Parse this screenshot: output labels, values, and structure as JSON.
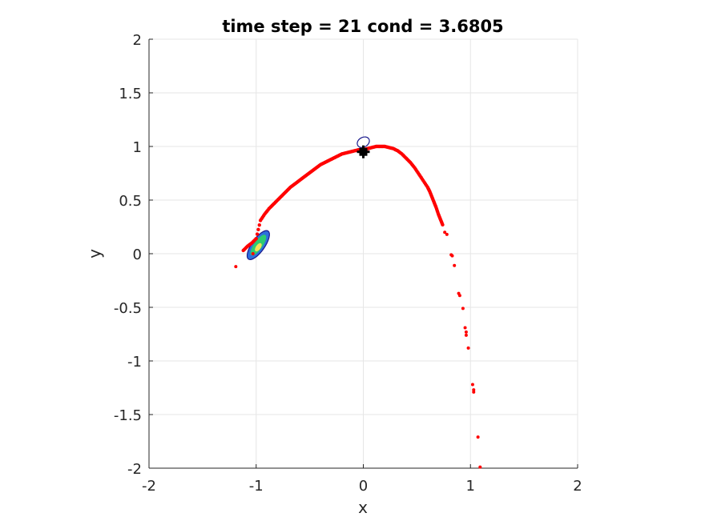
{
  "chart_data": {
    "type": "scatter",
    "title": "time step = 21 cond = 3.6805",
    "xlabel": "x",
    "ylabel": "y",
    "xlim": [
      -2,
      2
    ],
    "ylim": [
      -2,
      2
    ],
    "xticks": [
      -2,
      -1,
      0,
      1,
      2
    ],
    "yticks": [
      -2,
      -1.5,
      -1,
      -0.5,
      0,
      0.5,
      1,
      1.5,
      2
    ],
    "xtick_labels": [
      "-2",
      "-1",
      "0",
      "1",
      "2"
    ],
    "ytick_labels": [
      "-2",
      "-1.5",
      "-1",
      "-0.5",
      "0",
      "0.5",
      "1",
      "1.5",
      "2"
    ],
    "grid": true,
    "colors": {
      "particles": "#ff0000",
      "estimate_marker": "#000000",
      "contour_outer": "#1a1a8c",
      "contour_inner": "#2ecc71",
      "contour_peak": "#f1e35a"
    },
    "particles_curve": {
      "x": [
        -1.12,
        -1.08,
        -1.04,
        -1.0,
        -0.96,
        -0.92,
        -0.88,
        -0.84,
        -0.8,
        -0.76,
        -0.72,
        -0.68,
        -0.64,
        -0.6,
        -0.56,
        -0.52,
        -0.48,
        -0.44,
        -0.4,
        -0.36,
        -0.32,
        -0.28,
        -0.24,
        -0.2,
        -0.16,
        -0.12,
        -0.08,
        -0.04,
        0.0,
        0.04,
        0.08,
        0.12,
        0.16,
        0.2,
        0.24,
        0.28,
        0.32,
        0.36,
        0.4,
        0.44,
        0.48,
        0.52,
        0.56,
        0.6,
        0.62,
        0.64,
        0.66,
        0.68,
        0.7,
        0.72,
        0.74
      ],
      "y": [
        0.03,
        0.07,
        0.1,
        0.14,
        0.31,
        0.37,
        0.42,
        0.46,
        0.5,
        0.54,
        0.58,
        0.62,
        0.65,
        0.68,
        0.71,
        0.74,
        0.77,
        0.8,
        0.83,
        0.85,
        0.87,
        0.89,
        0.91,
        0.93,
        0.94,
        0.95,
        0.96,
        0.97,
        0.97,
        0.98,
        0.99,
        1.0,
        1.0,
        1.0,
        0.99,
        0.98,
        0.96,
        0.93,
        0.89,
        0.85,
        0.8,
        0.74,
        0.68,
        0.62,
        0.58,
        0.53,
        0.48,
        0.43,
        0.37,
        0.32,
        0.27
      ]
    },
    "particles_scattered": {
      "x": [
        -1.19,
        -1.03,
        0.76,
        0.78,
        0.82,
        0.83,
        0.85,
        0.89,
        0.9,
        0.93,
        0.95,
        0.96,
        0.96,
        0.98,
        1.02,
        1.03,
        1.03,
        1.07,
        1.09
      ],
      "y": [
        -0.12,
        0.0,
        0.2,
        0.18,
        -0.01,
        -0.02,
        -0.11,
        -0.37,
        -0.39,
        -0.51,
        -0.69,
        -0.73,
        -0.76,
        -0.88,
        -1.22,
        -1.27,
        -1.29,
        -1.71,
        -1.99
      ]
    },
    "estimate": {
      "x": 0.0,
      "y": 0.95
    },
    "contours": [
      {
        "cx": -0.98,
        "cy": 0.08,
        "rx": 0.16,
        "ry": 0.06,
        "angle_deg": 55,
        "level": "outer"
      },
      {
        "cx": -0.98,
        "cy": 0.08,
        "rx": 0.11,
        "ry": 0.035,
        "angle_deg": 55,
        "level": "inner"
      },
      {
        "cx": -0.98,
        "cy": 0.06,
        "rx": 0.04,
        "ry": 0.018,
        "angle_deg": 55,
        "level": "peak"
      },
      {
        "cx": -0.0,
        "cy": 1.04,
        "rx": 0.06,
        "ry": 0.045,
        "angle_deg": 30,
        "level": "outer"
      }
    ]
  }
}
